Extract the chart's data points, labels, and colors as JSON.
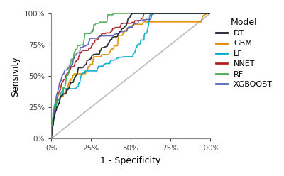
{
  "xlabel": "1 - Specificity",
  "ylabel": "Sensivity",
  "xlim": [
    0,
    1
  ],
  "ylim": [
    0,
    1
  ],
  "xtick_labels": [
    "0%",
    "25%",
    "50%",
    "75%",
    "100%"
  ],
  "ytick_labels": [
    "0%",
    "25%",
    "50%",
    "75%",
    "100%"
  ],
  "xtick_vals": [
    0,
    0.25,
    0.5,
    0.75,
    1.0
  ],
  "ytick_vals": [
    0,
    0.25,
    0.5,
    0.75,
    1.0
  ],
  "models": [
    "DT",
    "GBM",
    "LF",
    "NNET",
    "RF",
    "XGBOOST"
  ],
  "colors": {
    "DT": "#1a1a2e",
    "GBM": "#e08c00",
    "LF": "#00aacc",
    "NNET": "#b02020",
    "RF": "#4aaa55",
    "XGBOOST": "#5560bb"
  },
  "linewidth": 1.2,
  "diagonal_color": "#bbbbbb",
  "background_color": "#ffffff",
  "legend_title": "Model",
  "legend_title_fontsize": 9,
  "legend_fontsize": 8,
  "axis_label_fontsize": 9,
  "tick_fontsize": 7.5
}
